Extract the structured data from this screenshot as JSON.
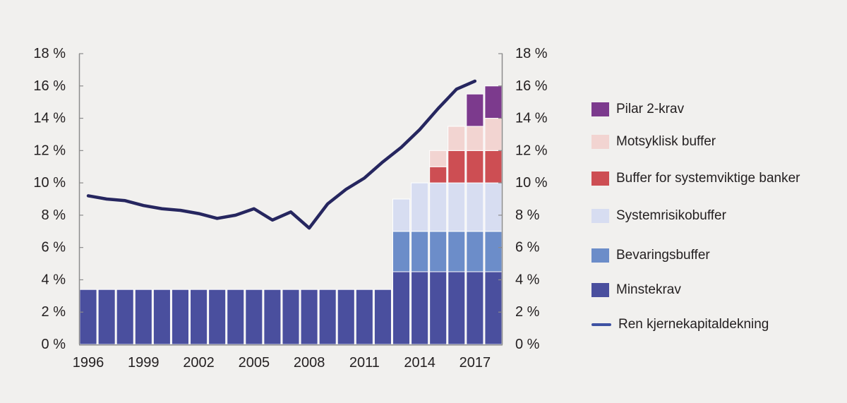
{
  "chart_data": {
    "type": "bar",
    "stacked": true,
    "categories": [
      1996,
      1997,
      1998,
      1999,
      2000,
      2001,
      2002,
      2003,
      2004,
      2005,
      2006,
      2007,
      2008,
      2009,
      2010,
      2011,
      2012,
      2013,
      2014,
      2015,
      2016,
      2017,
      2018
    ],
    "series": [
      {
        "name": "Minstekrav",
        "color": "#4A4F9E",
        "values": [
          3.4,
          3.4,
          3.4,
          3.4,
          3.4,
          3.4,
          3.4,
          3.4,
          3.4,
          3.4,
          3.4,
          3.4,
          3.4,
          3.4,
          3.4,
          3.4,
          3.4,
          4.5,
          4.5,
          4.5,
          4.5,
          4.5,
          4.5
        ]
      },
      {
        "name": "Bevaringsbuffer",
        "color": "#6C8DC9",
        "values": [
          0,
          0,
          0,
          0,
          0,
          0,
          0,
          0,
          0,
          0,
          0,
          0,
          0,
          0,
          0,
          0,
          0,
          2.5,
          2.5,
          2.5,
          2.5,
          2.5,
          2.5
        ]
      },
      {
        "name": "Systemrisikobuffer",
        "color": "#D7DDF1",
        "values": [
          0,
          0,
          0,
          0,
          0,
          0,
          0,
          0,
          0,
          0,
          0,
          0,
          0,
          0,
          0,
          0,
          0,
          2,
          3,
          3,
          3,
          3,
          3
        ]
      },
      {
        "name": "Buffer for systemviktige banker",
        "color": "#CD4E53",
        "values": [
          0,
          0,
          0,
          0,
          0,
          0,
          0,
          0,
          0,
          0,
          0,
          0,
          0,
          0,
          0,
          0,
          0,
          0,
          0,
          1,
          2,
          2,
          2
        ]
      },
      {
        "name": "Motsyklisk buffer",
        "color": "#F2D4D1",
        "values": [
          0,
          0,
          0,
          0,
          0,
          0,
          0,
          0,
          0,
          0,
          0,
          0,
          0,
          0,
          0,
          0,
          0,
          0,
          0,
          1,
          1.5,
          1.5,
          2
        ]
      },
      {
        "name": "Pilar 2-krav",
        "color": "#7C3A8D",
        "values": [
          0,
          0,
          0,
          0,
          0,
          0,
          0,
          0,
          0,
          0,
          0,
          0,
          0,
          0,
          0,
          0,
          0,
          0,
          0,
          0,
          0,
          2,
          2
        ]
      }
    ],
    "line_series": {
      "name": "Ren kjernekapitaldekning",
      "color": "#26265F",
      "categories": [
        1996,
        1997,
        1998,
        1999,
        2000,
        2001,
        2002,
        2003,
        2004,
        2005,
        2006,
        2007,
        2008,
        2009,
        2010,
        2011,
        2012,
        2013,
        2014,
        2015,
        2016,
        2017
      ],
      "values": [
        9.2,
        9.0,
        8.9,
        8.6,
        8.4,
        8.3,
        8.1,
        7.8,
        8.0,
        8.4,
        7.7,
        8.2,
        7.2,
        8.7,
        9.6,
        10.3,
        11.3,
        12.2,
        13.3,
        14.6,
        15.8,
        16.3
      ]
    },
    "title": "",
    "xlabel": "",
    "ylabel": "",
    "ylim": [
      0,
      18
    ],
    "y_tick_step": 2,
    "y_tick_labels": [
      "0 %",
      "2 %",
      "4 %",
      "6 %",
      "8 %",
      "10 %",
      "12 %",
      "14 %",
      "16 %",
      "18 %"
    ],
    "x_tick_labels": [
      "1996",
      "1999",
      "2002",
      "2005",
      "2008",
      "2011",
      "2014",
      "2017"
    ],
    "grid": false,
    "dual_y_axis": true,
    "legend_position": "right"
  },
  "legend": {
    "entries": [
      {
        "label": "Pilar 2-krav",
        "color": "#7C3A8D",
        "type": "box"
      },
      {
        "label": "Motsyklisk buffer",
        "color": "#F2D4D1",
        "type": "box"
      },
      {
        "label": "Buffer for systemviktige banker",
        "color": "#CD4E53",
        "type": "box"
      },
      {
        "label": "Systemrisikobuffer",
        "color": "#D7DDF1",
        "type": "box"
      },
      {
        "label": "Bevaringsbuffer",
        "color": "#6C8DC9",
        "type": "box"
      },
      {
        "label": "Minstekrav",
        "color": "#4A4F9E",
        "type": "box"
      },
      {
        "label": "Ren kjernekapitaldekning",
        "color": "#3E52A3",
        "type": "line"
      }
    ]
  },
  "colors": {
    "background": "#F1F0EE",
    "axis": "#8C8C8C",
    "text": "#231F20",
    "bar_gap": "#FFFFFF"
  }
}
